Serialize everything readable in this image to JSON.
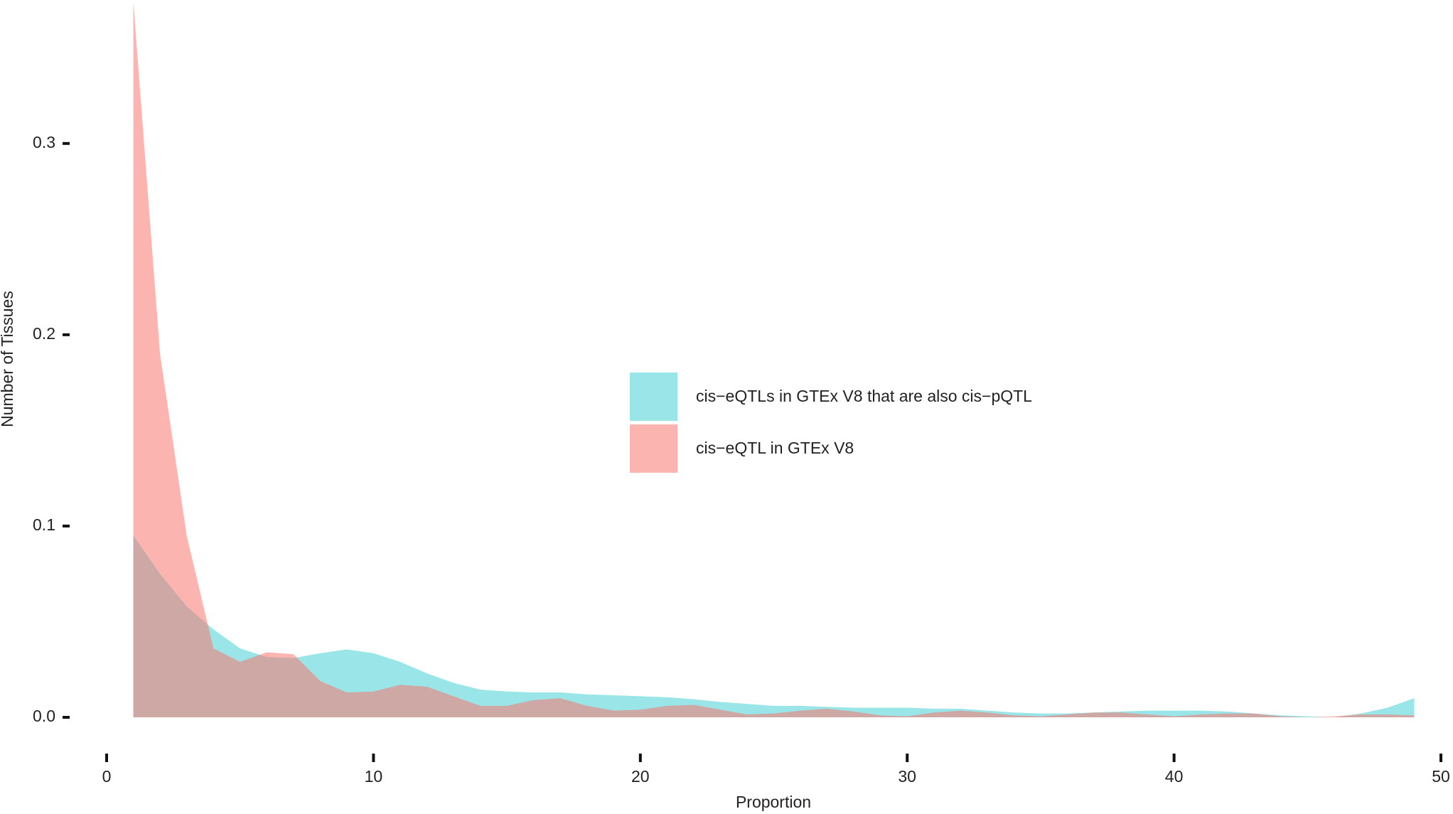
{
  "chart_data": {
    "type": "area",
    "x_label": "Proportion",
    "y_label": "Number of Tissues",
    "x": [
      1,
      2,
      3,
      4,
      5,
      6,
      7,
      8,
      9,
      10,
      11,
      12,
      13,
      14,
      15,
      16,
      17,
      18,
      19,
      20,
      21,
      22,
      23,
      24,
      25,
      26,
      27,
      28,
      29,
      30,
      31,
      32,
      33,
      34,
      35,
      36,
      37,
      38,
      39,
      40,
      41,
      42,
      43,
      44,
      45,
      46,
      47,
      48,
      49
    ],
    "series": [
      {
        "name": "cis−eQTLs in GTEx V8 that are also cis−pQTL",
        "color": "#00BFC4",
        "values": [
          0.095,
          0.075,
          0.058,
          0.046,
          0.036,
          0.0315,
          0.031,
          0.0335,
          0.0355,
          0.0335,
          0.029,
          0.023,
          0.018,
          0.0145,
          0.0135,
          0.013,
          0.013,
          0.012,
          0.0115,
          0.011,
          0.0105,
          0.0095,
          0.008,
          0.007,
          0.006,
          0.006,
          0.0055,
          0.005,
          0.005,
          0.005,
          0.0045,
          0.0045,
          0.0035,
          0.0025,
          0.002,
          0.002,
          0.0025,
          0.003,
          0.0035,
          0.0035,
          0.0035,
          0.003,
          0.002,
          0.001,
          0.0005,
          0,
          0.002,
          0.005,
          0.01
        ]
      },
      {
        "name": "cis−eQTL in GTEx V8",
        "color": "#F8766D",
        "values": [
          0.374,
          0.19,
          0.095,
          0.036,
          0.029,
          0.034,
          0.033,
          0.019,
          0.013,
          0.0135,
          0.017,
          0.016,
          0.011,
          0.006,
          0.006,
          0.009,
          0.01,
          0.006,
          0.0035,
          0.004,
          0.006,
          0.0065,
          0.004,
          0.0015,
          0.002,
          0.0035,
          0.0045,
          0.003,
          0.001,
          0.0005,
          0.0025,
          0.0035,
          0.0025,
          0.001,
          0.0005,
          0.0015,
          0.0025,
          0.0025,
          0.0015,
          0.0005,
          0.0015,
          0.002,
          0.002,
          0.0005,
          0,
          0.0005,
          0.0015,
          0.0015,
          0.001
        ]
      }
    ],
    "xlim": [
      0,
      50
    ],
    "xticks": [
      0,
      10,
      20,
      30,
      40,
      50
    ],
    "ylim": [
      0,
      0.375
    ],
    "yticks": [
      {
        "value": 0,
        "label": "0.0"
      },
      {
        "value": 0.1,
        "label": "0.1"
      },
      {
        "value": 0.2,
        "label": "0.2"
      },
      {
        "value": 0.3,
        "label": "0.3"
      }
    ],
    "legend": "center"
  }
}
